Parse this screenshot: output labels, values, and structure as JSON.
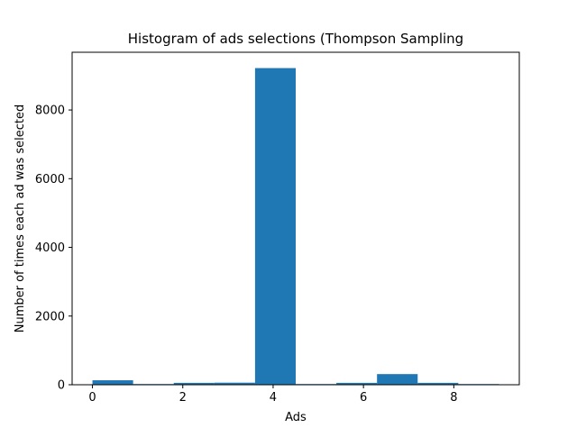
{
  "chart_data": {
    "type": "bar",
    "title": "Histogram of ads selections (Thompson Sampling",
    "xlabel": "Ads",
    "ylabel": "Number of times each ad was selected",
    "bin_edges": [
      0,
      0.9,
      1.8,
      2.7,
      3.6,
      4.5,
      5.4,
      6.3,
      7.2,
      8.1,
      9.0
    ],
    "values": [
      130,
      20,
      55,
      60,
      9220,
      20,
      55,
      310,
      55,
      20
    ],
    "xlim": [
      -0.45,
      9.45
    ],
    "ylim": [
      0,
      9681
    ],
    "xticks": [
      0,
      2,
      4,
      6,
      8
    ],
    "yticks": [
      0,
      2000,
      4000,
      6000,
      8000
    ],
    "bar_color": "#1f77b4",
    "grid": false
  }
}
